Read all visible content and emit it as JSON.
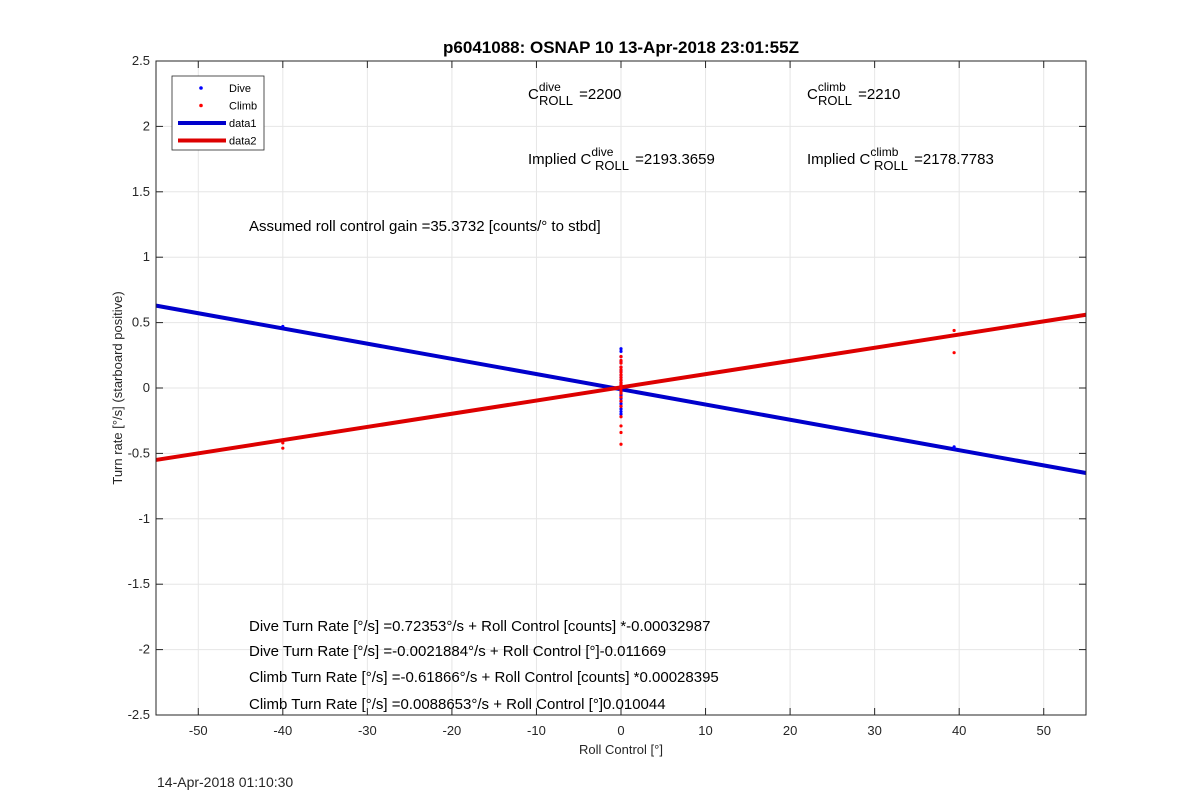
{
  "chart_data": {
    "type": "scatter",
    "title": "p6041088: OSNAP 10 13-Apr-2018 23:01:55Z",
    "xlabel": "Roll Control [°]",
    "ylabel": "Turn rate [°/s] (starboard positive)",
    "xlim": [
      -55,
      55
    ],
    "ylim": [
      -2.5,
      2.5
    ],
    "xticks": [
      -50,
      -40,
      -30,
      -20,
      -10,
      0,
      10,
      20,
      30,
      40,
      50
    ],
    "yticks": [
      -2.5,
      -2,
      -1.5,
      -1,
      -0.5,
      0,
      0.5,
      1,
      1.5,
      2,
      2.5
    ],
    "grid": true,
    "legend_position": "top-left",
    "legend": [
      {
        "label": "Dive",
        "marker": "dot",
        "color": "#0000ff"
      },
      {
        "label": "Climb",
        "marker": "dot",
        "color": "#ff0000"
      },
      {
        "label": "data1",
        "marker": "line",
        "color": "#0000cc"
      },
      {
        "label": "data2",
        "marker": "line",
        "color": "#dd0000"
      }
    ],
    "series": [
      {
        "name": "Dive",
        "kind": "points",
        "color": "#0000ff",
        "x": [
          -40,
          0,
          0,
          0,
          0,
          0,
          0,
          0,
          0,
          0,
          0,
          0,
          0,
          0,
          0,
          0,
          0,
          0,
          0,
          0,
          0,
          0,
          0,
          0,
          0,
          0,
          39.4,
          39.4
        ],
        "y": [
          0.47,
          0.3,
          0.28,
          0.24,
          0.2,
          0.16,
          0.13,
          0.1,
          0.08,
          0.06,
          0.04,
          0.02,
          0.01,
          0.0,
          -0.01,
          -0.02,
          -0.03,
          -0.05,
          -0.06,
          -0.08,
          -0.1,
          -0.12,
          -0.14,
          -0.16,
          -0.18,
          -0.2,
          -0.45,
          -0.46
        ]
      },
      {
        "name": "Climb",
        "kind": "points",
        "color": "#ff0000",
        "x": [
          -40,
          -40,
          0,
          0,
          0,
          0,
          0,
          0,
          0,
          0,
          0,
          0,
          0,
          0,
          0,
          0,
          0,
          0,
          0,
          0,
          0,
          0,
          0,
          0,
          0,
          39.4,
          39.4
        ],
        "y": [
          -0.42,
          -0.46,
          0.24,
          0.21,
          0.19,
          0.16,
          0.14,
          0.12,
          0.1,
          0.08,
          0.06,
          0.04,
          0.03,
          0.02,
          0.01,
          0.0,
          -0.02,
          -0.04,
          -0.07,
          -0.1,
          -0.14,
          -0.22,
          -0.29,
          -0.34,
          -0.43,
          0.44,
          0.27
        ]
      },
      {
        "name": "data1",
        "kind": "line",
        "color": "#0000cc",
        "x": [
          -55,
          55
        ],
        "y": [
          0.63,
          -0.65
        ]
      },
      {
        "name": "data2",
        "kind": "line",
        "color": "#dd0000",
        "x": [
          -55,
          55
        ],
        "y": [
          -0.55,
          0.56
        ]
      }
    ]
  },
  "annotations": {
    "c_roll_dive": {
      "base": "C",
      "sup": "dive",
      "sub": "ROLL",
      "value": " =2200"
    },
    "c_roll_climb": {
      "base": "C",
      "sup": "climb",
      "sub": "ROLL",
      "value": " =2210"
    },
    "implied_dive": {
      "prefix": "Implied C",
      "sup": "dive",
      "sub": "ROLL",
      "value": " =2193.3659"
    },
    "implied_climb": {
      "prefix": "Implied C",
      "sup": "climb",
      "sub": "ROLL",
      "value": " =2178.7783"
    },
    "gain": "Assumed roll control gain =35.3732 [counts/° to stbd]",
    "fit_lines": [
      "Dive Turn Rate [°/s] =0.72353°/s + Roll Control [counts] *-0.00032987",
      "Dive Turn Rate [°/s] =-0.0021884°/s + Roll Control [°]-0.011669",
      "Climb Turn Rate [°/s] =-0.61866°/s + Roll Control [counts] *0.00028395",
      "Climb Turn Rate [°/s] =0.0088653°/s + Roll Control [°]0.010044"
    ]
  },
  "footer": {
    "timestamp": "14-Apr-2018 01:10:30"
  }
}
